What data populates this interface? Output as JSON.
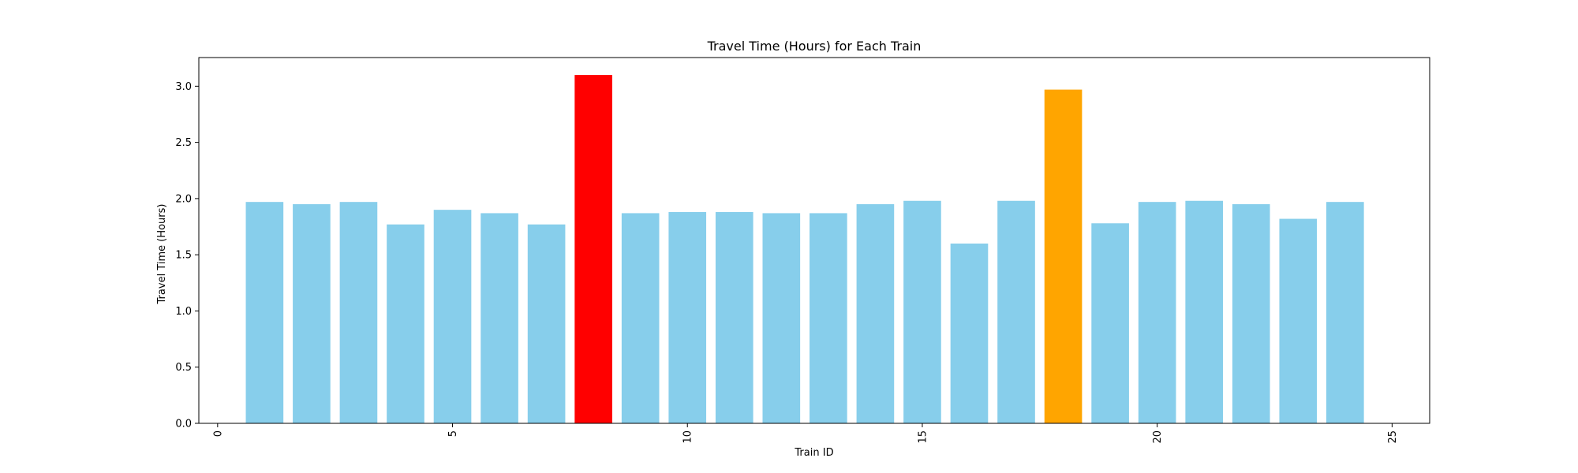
{
  "chart_data": {
    "type": "bar",
    "title": "Travel Time (Hours) for Each Train",
    "xlabel": "Train ID",
    "ylabel": "Travel Time (Hours)",
    "x": [
      1,
      2,
      3,
      4,
      5,
      6,
      7,
      8,
      9,
      10,
      11,
      12,
      13,
      14,
      15,
      16,
      17,
      18,
      19,
      20,
      21,
      22,
      23,
      24
    ],
    "values": [
      1.97,
      1.95,
      1.97,
      1.77,
      1.9,
      1.87,
      1.77,
      3.1,
      1.87,
      1.88,
      1.88,
      1.87,
      1.87,
      1.95,
      1.98,
      1.6,
      1.98,
      2.97,
      1.78,
      1.97,
      1.98,
      1.95,
      1.82,
      1.97
    ],
    "bar_colors": [
      "#87CEEB",
      "#87CEEB",
      "#87CEEB",
      "#87CEEB",
      "#87CEEB",
      "#87CEEB",
      "#87CEEB",
      "#FF0000",
      "#87CEEB",
      "#87CEEB",
      "#87CEEB",
      "#87CEEB",
      "#87CEEB",
      "#87CEEB",
      "#87CEEB",
      "#87CEEB",
      "#87CEEB",
      "#FFA500",
      "#87CEEB",
      "#87CEEB",
      "#87CEEB",
      "#87CEEB",
      "#87CEEB",
      "#87CEEB"
    ],
    "xlim": [
      -0.4,
      25.8
    ],
    "ylim": [
      0,
      3.255
    ],
    "xticks": [
      0,
      5,
      10,
      15,
      20,
      25
    ],
    "yticks": [
      0.0,
      0.5,
      1.0,
      1.5,
      2.0,
      2.5,
      3.0
    ],
    "xtick_rotation": "vertical",
    "grid": false,
    "legend": "none"
  }
}
